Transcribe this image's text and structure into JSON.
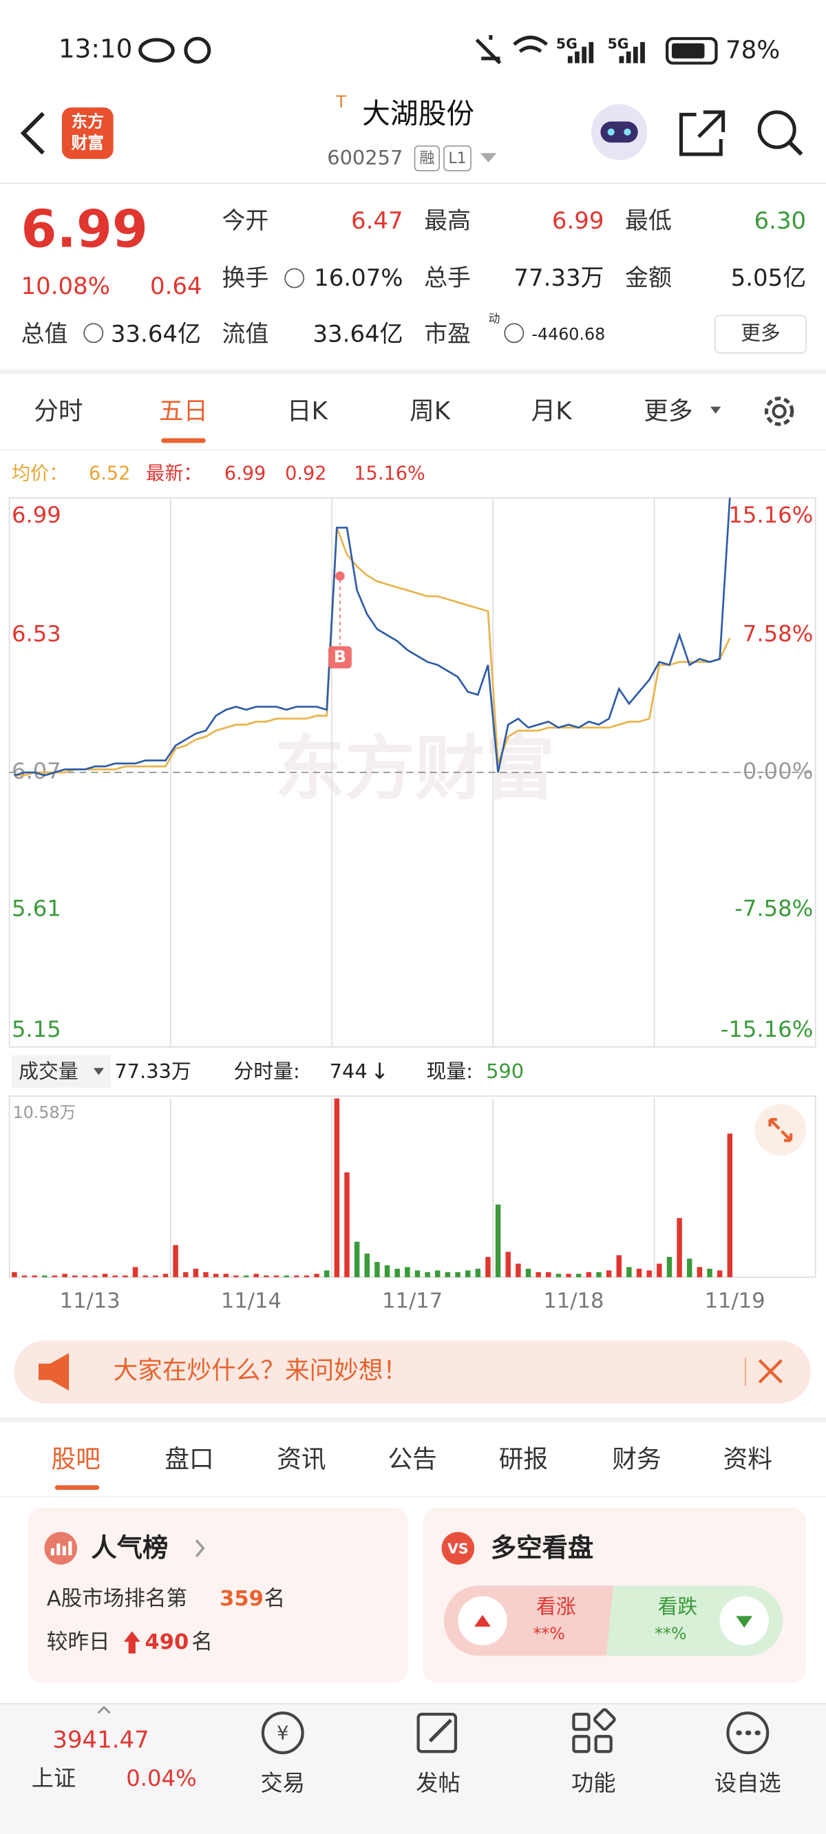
{
  "status_bar": {
    "time": "13:10",
    "net1": "5G",
    "net2": "5G",
    "battery": "78%"
  },
  "header": {
    "logo_line1": "东方",
    "logo_line2": "财富",
    "badge": "T",
    "title": "大湖股份",
    "code": "600257",
    "tag1": "融",
    "tag2": "L1"
  },
  "quote": {
    "price": "6.99",
    "change_pct": "10.08%",
    "change": "0.64",
    "fields": [
      {
        "label": "今开",
        "value": "6.47"
      },
      {
        "label": "最高",
        "value": "6.99"
      },
      {
        "label": "最低",
        "value": "6.30"
      },
      {
        "label": "换手",
        "value": "16.07%"
      },
      {
        "label": "总手",
        "value": "77.33万"
      },
      {
        "label": "金额",
        "value": "5.05亿"
      },
      {
        "label": "总值",
        "value": "33.64亿"
      },
      {
        "label": "流值",
        "value": "33.64亿"
      },
      {
        "label": "市盈",
        "value": "-4460.68"
      }
    ],
    "pe_sup": "动",
    "more": "更多"
  },
  "tabs": [
    "分时",
    "五日",
    "日K",
    "周K",
    "月K",
    "更多"
  ],
  "legend": {
    "change": "0.92",
    "change_pct": "15.16%"
  },
  "buy_marker": "B",
  "watermark": "东方财富",
  "volume_info": {
    "total": "77.33万",
    "tick_label": "分时量:",
    "tick_value": "744",
    "arrow": "↓",
    "now_label": "现量:",
    "now_value": "590"
  },
  "chart_data": [
    {
      "type": "line",
      "xlim": [
        0,
        80
      ],
      "ylim": [
        5.15,
        6.99
      ],
      "yticks": [
        6.99,
        6.53,
        6.07,
        5.61,
        5.15
      ],
      "y2lim": [
        -15.16,
        15.16
      ],
      "y2ticks": [
        {
          "value": 15.16,
          "label": "15.16%"
        },
        {
          "value": 7.58,
          "label": "7.58%"
        },
        {
          "value": 0,
          "label": "0.00%"
        },
        {
          "value": -7.58,
          "label": "-7.58%"
        },
        {
          "value": -15.16,
          "label": "-15.16%"
        }
      ],
      "series": [
        {
          "name": "最新：",
          "color": "#2f5da8",
          "values": [
            6.06,
            6.07,
            6.07,
            6.06,
            6.07,
            6.08,
            6.08,
            6.08,
            6.09,
            6.09,
            6.1,
            6.1,
            6.1,
            6.11,
            6.11,
            6.11,
            6.16,
            6.18,
            6.2,
            6.21,
            6.26,
            6.28,
            6.29,
            6.28,
            6.29,
            6.29,
            6.29,
            6.28,
            6.29,
            6.29,
            6.29,
            6.28,
            6.89,
            6.89,
            6.68,
            6.6,
            6.55,
            6.53,
            6.51,
            6.48,
            6.46,
            6.44,
            6.43,
            6.41,
            6.39,
            6.34,
            6.33,
            6.43,
            6.07,
            6.23,
            6.25,
            6.22,
            6.23,
            6.24,
            6.22,
            6.23,
            6.22,
            6.24,
            6.23,
            6.25,
            6.35,
            6.3,
            6.34,
            6.38,
            6.44,
            6.43,
            6.53,
            6.43,
            6.45,
            6.44,
            6.45,
            6.99,
            null,
            null,
            null,
            null,
            null,
            null,
            null,
            null
          ]
        },
        {
          "name": "均价：",
          "color": "#e8b44c",
          "values": [
            6.06,
            6.06,
            6.07,
            6.07,
            6.07,
            6.07,
            6.08,
            6.08,
            6.08,
            6.08,
            6.08,
            6.09,
            6.09,
            6.09,
            6.09,
            6.09,
            6.15,
            6.16,
            6.18,
            6.19,
            6.21,
            6.22,
            6.23,
            6.23,
            6.24,
            6.24,
            6.25,
            6.25,
            6.25,
            6.25,
            6.26,
            6.26,
            6.89,
            6.8,
            6.76,
            6.73,
            6.71,
            6.7,
            6.69,
            6.68,
            6.67,
            6.66,
            6.66,
            6.65,
            6.64,
            6.63,
            6.62,
            6.61,
            6.1,
            6.19,
            6.21,
            6.21,
            6.21,
            6.22,
            6.22,
            6.22,
            6.22,
            6.22,
            6.22,
            6.22,
            6.23,
            6.24,
            6.24,
            6.25,
            6.43,
            6.43,
            6.44,
            6.44,
            6.44,
            6.44,
            6.45,
            6.52,
            null,
            null,
            null,
            null,
            null,
            null,
            null,
            null
          ]
        }
      ]
    },
    {
      "type": "bar",
      "xlim": [
        0,
        80
      ],
      "xticks": [
        {
          "value": 8,
          "label": "11/13"
        },
        {
          "value": 24,
          "label": "11/14"
        },
        {
          "value": 40,
          "label": "11/17"
        },
        {
          "value": 56,
          "label": "11/18"
        },
        {
          "value": 72,
          "label": "11/19"
        }
      ],
      "ylim": [
        0,
        10.58
      ],
      "yticks": [
        {
          "value": 10.58,
          "label": "10.58万"
        }
      ],
      "up_color": "#e0362f",
      "down_color": "#3a9a3a",
      "series": [
        {
          "name": "成交量",
          "values": [
            0.3,
            0.1,
            0.1,
            0.1,
            0.1,
            0.2,
            0.1,
            0.1,
            0.1,
            0.2,
            0.1,
            0.1,
            0.6,
            0.1,
            0.1,
            0.2,
            1.9,
            0.3,
            0.5,
            0.3,
            0.2,
            0.2,
            0.1,
            0.1,
            0.2,
            0.1,
            0.1,
            0.1,
            0.1,
            0.1,
            0.2,
            0.4,
            10.58,
            6.2,
            2.1,
            1.4,
            0.9,
            0.7,
            0.5,
            0.6,
            0.4,
            0.3,
            0.4,
            0.3,
            0.3,
            0.4,
            0.5,
            1.2,
            4.3,
            1.5,
            0.8,
            0.5,
            0.3,
            0.3,
            0.2,
            0.2,
            0.2,
            0.3,
            0.3,
            0.4,
            1.3,
            0.6,
            0.5,
            0.4,
            0.8,
            1.2,
            3.5,
            1.1,
            0.6,
            0.5,
            0.4,
            8.5,
            null,
            null,
            null,
            null,
            null,
            null,
            null,
            null
          ]
        }
      ]
    }
  ],
  "banner": {
    "text": "大家在炒什么？来问妙想！"
  },
  "section_tabs": [
    "股吧",
    "盘口",
    "资讯",
    "公告",
    "研报",
    "财务",
    "资料"
  ],
  "popularity": {
    "title": "人气榜",
    "rank_prefix": "A股市场排名第",
    "rank": "359",
    "rank_suffix": "名",
    "delta_prefix": "较昨日",
    "delta": "490",
    "delta_suffix": "名"
  },
  "vs_card": {
    "icon": "VS",
    "title": "多空看盘",
    "up_label": "看涨",
    "up_value": "**%",
    "down_label": "看跌",
    "down_value": "**%"
  },
  "bottom_nav": {
    "index_value": "3941.47",
    "index_name": "上证",
    "index_change": "0.04%",
    "items": [
      "交易",
      "发帖",
      "功能",
      "设自选"
    ]
  }
}
